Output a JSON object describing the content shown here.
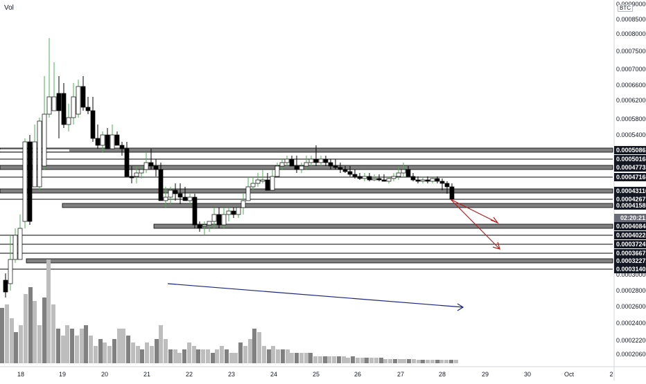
{
  "chart_data": {
    "type": "candlestick",
    "pair_currency": "BTC",
    "volume_label": "Vol",
    "countdown": "02:20:21",
    "ylim": [
      0.000193,
      9e-05
    ],
    "x_ticks": [
      "18",
      "19",
      "20",
      "21",
      "22",
      "23",
      "24",
      "25",
      "26",
      "27",
      "28",
      "29",
      "30",
      "Oct",
      "2"
    ],
    "y_ticks": [
      "0.00020600",
      "0.00022200",
      "0.00024000",
      "0.00026000",
      "0.00028000",
      "0.00030000",
      "0.00054000",
      "0.00058000",
      "0.00062000",
      "0.00066000",
      "0.00070000",
      "0.00075000",
      "0.00080000",
      "0.00085000",
      "0.00090000"
    ],
    "levels": [
      {
        "label": "0.00050862",
        "style": "box"
      },
      {
        "label": "0.00050166",
        "style": "line"
      },
      {
        "label": "0.00047735",
        "style": "box"
      },
      {
        "label": "0.00047166",
        "style": "line"
      },
      {
        "label": "0.00043116",
        "style": "box"
      },
      {
        "label": "0.00042671",
        "style": "line"
      },
      {
        "label": "0.00041586",
        "style": "box"
      },
      {
        "label": "0.00040844",
        "style": "box"
      },
      {
        "label": "0.00040224",
        "style": "line"
      },
      {
        "label": "0.00037247",
        "style": "line"
      },
      {
        "label": "0.00036672",
        "style": "line"
      },
      {
        "label": "0.00032272",
        "style": "box"
      },
      {
        "label": "0.00031402",
        "style": "line"
      }
    ],
    "colors": {
      "up_candle": "#ffffff",
      "down_candle": "#000000",
      "up_wick": "#4caf50",
      "vol_dark": "#808080",
      "vol_light": "#bdbdbd",
      "trend_blue": "#1a237e",
      "arrow_red": "#b71c1c",
      "level_fill": "#808080",
      "label_bg": "#131722"
    }
  }
}
